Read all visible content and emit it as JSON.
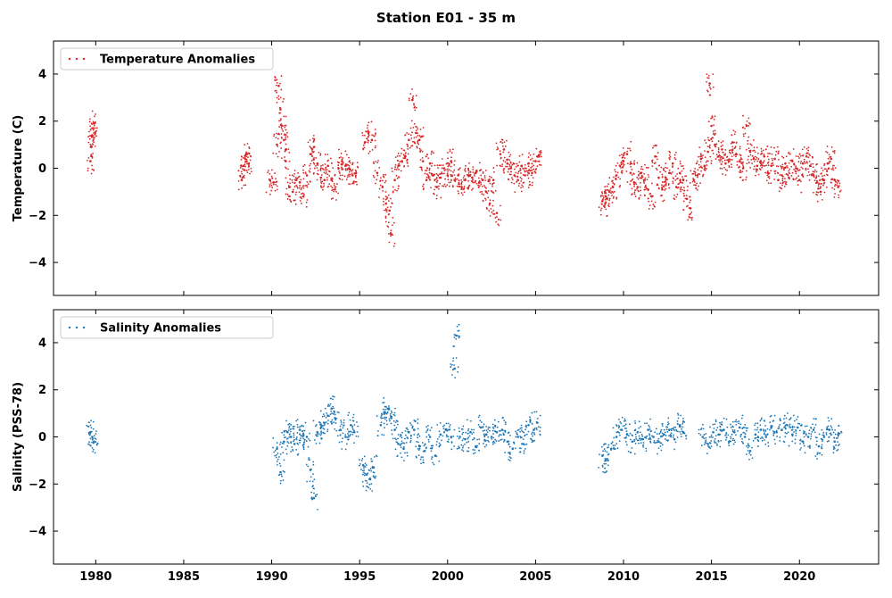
{
  "figure": {
    "title": "Station E01 - 35 m"
  },
  "chart_data": [
    {
      "type": "scatter",
      "panel": "top",
      "ylabel": "Temperature (C)",
      "xlabel": "",
      "xlim": [
        1977.6,
        2024.5
      ],
      "ylim": [
        -5.4,
        5.4
      ],
      "xticks": [
        "1980",
        "1985",
        "1990",
        "1995",
        "2000",
        "2005",
        "2010",
        "2015",
        "2020"
      ],
      "xtick_values": [
        1980,
        1985,
        1990,
        1995,
        2000,
        2005,
        2010,
        2015,
        2020
      ],
      "yticks": [
        "−4",
        "−2",
        "0",
        "2",
        "4"
      ],
      "ytick_values": [
        -4,
        -2,
        0,
        2,
        4
      ],
      "xtick_labels_visible": false,
      "grid": false,
      "legend": "top-left",
      "series": [
        {
          "name": "Temperature Anomalies",
          "color": "#d62728",
          "marker": "point",
          "x": [
            1979.7,
            1979.75,
            1979.8,
            1979.85,
            1979.9,
            1988.3,
            1988.4,
            1988.5,
            1988.6,
            1988.7,
            1989.9,
            1990.1,
            1990.3,
            1990.4,
            1990.5,
            1990.6,
            1990.7,
            1990.8,
            1991.0,
            1991.2,
            1991.4,
            1991.6,
            1991.8,
            1992.0,
            1992.2,
            1992.4,
            1992.6,
            1992.8,
            1993.0,
            1993.2,
            1993.4,
            1993.6,
            1993.8,
            1994.0,
            1994.2,
            1994.4,
            1994.6,
            1994.8,
            1995.3,
            1995.5,
            1995.7,
            1996.0,
            1996.3,
            1996.5,
            1996.7,
            1996.8,
            1997.0,
            1997.2,
            1997.4,
            1997.6,
            1997.8,
            1998.0,
            1998.2,
            1998.4,
            1998.6,
            1998.8,
            1999.0,
            1999.2,
            1999.4,
            1999.6,
            1999.8,
            2000.0,
            2000.2,
            2000.4,
            2000.6,
            2000.8,
            2001.0,
            2001.2,
            2001.4,
            2001.6,
            2001.8,
            2002.0,
            2002.2,
            2002.4,
            2002.6,
            2002.8,
            2003.0,
            2003.2,
            2003.4,
            2003.6,
            2003.8,
            2004.0,
            2004.2,
            2004.4,
            2004.6,
            2004.8,
            2005.0,
            2005.1,
            2008.8,
            2008.9,
            2009.0,
            2009.2,
            2009.4,
            2009.6,
            2009.8,
            2010.0,
            2010.2,
            2010.4,
            2010.6,
            2010.8,
            2011.0,
            2011.2,
            2011.4,
            2011.6,
            2011.8,
            2012.0,
            2012.2,
            2012.4,
            2012.6,
            2012.8,
            2013.0,
            2013.2,
            2013.4,
            2013.6,
            2013.8,
            2014.0,
            2014.2,
            2014.4,
            2014.6,
            2014.8,
            2014.9,
            2015.0,
            2015.2,
            2015.4,
            2015.6,
            2015.8,
            2016.0,
            2016.2,
            2016.4,
            2016.6,
            2016.8,
            2017.0,
            2017.2,
            2017.4,
            2017.6,
            2017.8,
            2018.0,
            2018.2,
            2018.4,
            2018.6,
            2018.8,
            2019.0,
            2019.2,
            2019.4,
            2019.6,
            2019.8,
            2020.0,
            2020.2,
            2020.4,
            2020.6,
            2020.8,
            2021.0,
            2021.2,
            2021.4,
            2021.6,
            2021.8,
            2022.0,
            2022.2
          ],
          "y": [
            0.3,
            0.9,
            1.4,
            1.7,
            1.9,
            -0.5,
            0.1,
            0.4,
            0.6,
            0.2,
            -0.5,
            -0.6,
            1.0,
            3.5,
            2.5,
            1.8,
            1.2,
            0.3,
            -0.8,
            -1.0,
            -0.5,
            -0.6,
            -1.2,
            -0.3,
            0.6,
            0.9,
            0.2,
            -0.4,
            -0.5,
            0.1,
            -0.5,
            -0.9,
            0.0,
            0.3,
            0.1,
            0.0,
            -0.3,
            -0.2,
            1.1,
            1.5,
            1.2,
            -0.2,
            -0.8,
            -1.5,
            -1.8,
            -2.8,
            -0.5,
            0.1,
            0.3,
            0.5,
            1.2,
            2.9,
            1.5,
            1.2,
            0.3,
            -0.5,
            0.2,
            -0.3,
            -0.8,
            -0.4,
            0.0,
            -0.3,
            0.3,
            -0.5,
            -0.3,
            -0.8,
            -0.5,
            -0.3,
            -0.4,
            -0.2,
            -0.6,
            -0.5,
            -1.0,
            -1.5,
            -0.5,
            -1.9,
            0.6,
            0.8,
            0.2,
            0.0,
            -0.3,
            -0.5,
            0.1,
            -0.3,
            0.2,
            -0.2,
            0.3,
            0.5,
            -1.4,
            -1.6,
            -1.2,
            -1.0,
            -0.8,
            -0.3,
            0.1,
            0.3,
            0.6,
            -0.2,
            -0.6,
            -0.8,
            -0.2,
            -0.5,
            -0.9,
            -1.2,
            0.5,
            -0.4,
            -0.9,
            -0.4,
            -0.2,
            0.2,
            -0.8,
            -0.2,
            -0.5,
            -1.3,
            -1.7,
            -0.5,
            -0.3,
            0.4,
            0.1,
            0.7,
            3.6,
            1.8,
            1.0,
            0.5,
            0.8,
            0.2,
            0.3,
            1.1,
            0.6,
            0.3,
            0.0,
            1.8,
            0.7,
            0.4,
            0.1,
            0.3,
            0.5,
            -0.2,
            0.1,
            0.4,
            -0.5,
            -0.3,
            0.2,
            -0.4,
            0.3,
            0.0,
            -0.5,
            0.2,
            0.5,
            0.1,
            -0.3,
            -0.6,
            -1.0,
            -0.5,
            0.2,
            0.4,
            -0.5,
            -0.8
          ]
        }
      ]
    },
    {
      "type": "scatter",
      "panel": "bottom",
      "ylabel": "Salinity (PSS-78)",
      "xlabel": "",
      "xlim": [
        1977.6,
        2024.5
      ],
      "ylim": [
        -5.4,
        5.4
      ],
      "xticks": [
        "1980",
        "1985",
        "1990",
        "1995",
        "2000",
        "2005",
        "2010",
        "2015",
        "2020"
      ],
      "xtick_values": [
        1980,
        1985,
        1990,
        1995,
        2000,
        2005,
        2010,
        2015,
        2020
      ],
      "yticks": [
        "−4",
        "−2",
        "0",
        "2",
        "4"
      ],
      "ytick_values": [
        -4,
        -2,
        0,
        2,
        4
      ],
      "xtick_labels_visible": true,
      "grid": false,
      "legend": "top-left",
      "series": [
        {
          "name": "Salinity Anomalies",
          "color": "#1f77b4",
          "marker": "point",
          "x": [
            1979.7,
            1979.8,
            1979.9,
            1990.3,
            1990.5,
            1990.7,
            1990.9,
            1991.1,
            1991.3,
            1991.6,
            1991.8,
            1992.0,
            1992.2,
            1992.4,
            1992.6,
            1992.8,
            1993.0,
            1993.2,
            1993.4,
            1993.6,
            1993.9,
            1994.2,
            1994.5,
            1994.7,
            1995.2,
            1995.4,
            1995.6,
            1995.8,
            1996.2,
            1996.4,
            1996.6,
            1996.8,
            1997.0,
            1997.2,
            1997.5,
            1997.8,
            1998.1,
            1998.4,
            1998.7,
            1999.0,
            1999.3,
            1999.6,
            1999.9,
            2000.2,
            2000.4,
            2000.5,
            2000.7,
            2001.0,
            2001.3,
            2001.6,
            2001.9,
            2002.2,
            2002.5,
            2002.8,
            2003.1,
            2003.4,
            2003.7,
            2004.0,
            2004.3,
            2004.6,
            2004.9,
            2005.1,
            2008.8,
            2009.0,
            2009.3,
            2009.6,
            2009.9,
            2010.2,
            2010.5,
            2010.8,
            2011.1,
            2011.4,
            2011.7,
            2012.0,
            2012.3,
            2012.6,
            2012.9,
            2013.2,
            2013.4,
            2014.5,
            2014.8,
            2015.1,
            2015.4,
            2015.7,
            2016.0,
            2016.3,
            2016.6,
            2016.9,
            2017.2,
            2017.5,
            2017.8,
            2018.1,
            2018.4,
            2018.7,
            2019.0,
            2019.3,
            2019.6,
            2019.9,
            2020.2,
            2020.5,
            2020.8,
            2021.1,
            2021.4,
            2021.7,
            2022.0,
            2022.2
          ],
          "y": [
            0.2,
            0.0,
            -0.2,
            -0.5,
            -1.5,
            -0.2,
            0.2,
            0.0,
            -0.3,
            0.3,
            0.1,
            0.0,
            -1.4,
            -2.6,
            0.2,
            0.4,
            0.6,
            0.9,
            1.2,
            0.8,
            0.3,
            0.0,
            0.5,
            0.2,
            -1.2,
            -1.6,
            -1.8,
            -1.3,
            0.5,
            1.0,
            1.2,
            0.8,
            0.3,
            -0.3,
            -0.5,
            0.2,
            0.3,
            -0.4,
            -0.6,
            0.0,
            -0.8,
            0.1,
            0.3,
            0.0,
            2.9,
            4.3,
            0.0,
            -0.1,
            0.2,
            -0.4,
            0.4,
            0.1,
            0.0,
            0.2,
            0.3,
            -0.2,
            -0.5,
            0.0,
            -0.3,
            0.5,
            0.3,
            0.6,
            -0.8,
            -1.0,
            -0.5,
            0.0,
            0.3,
            0.1,
            -0.2,
            0.2,
            -0.1,
            0.3,
            0.0,
            -0.2,
            0.1,
            0.3,
            -0.1,
            0.5,
            0.2,
            0.0,
            -0.3,
            0.2,
            0.1,
            0.3,
            -0.2,
            0.2,
            0.4,
            0.0,
            -0.6,
            0.1,
            0.3,
            0.0,
            0.4,
            0.2,
            0.3,
            0.5,
            0.1,
            0.4,
            -0.2,
            0.0,
            0.3,
            -0.4,
            0.0,
            0.3,
            -0.2,
            0.1
          ]
        }
      ]
    }
  ]
}
